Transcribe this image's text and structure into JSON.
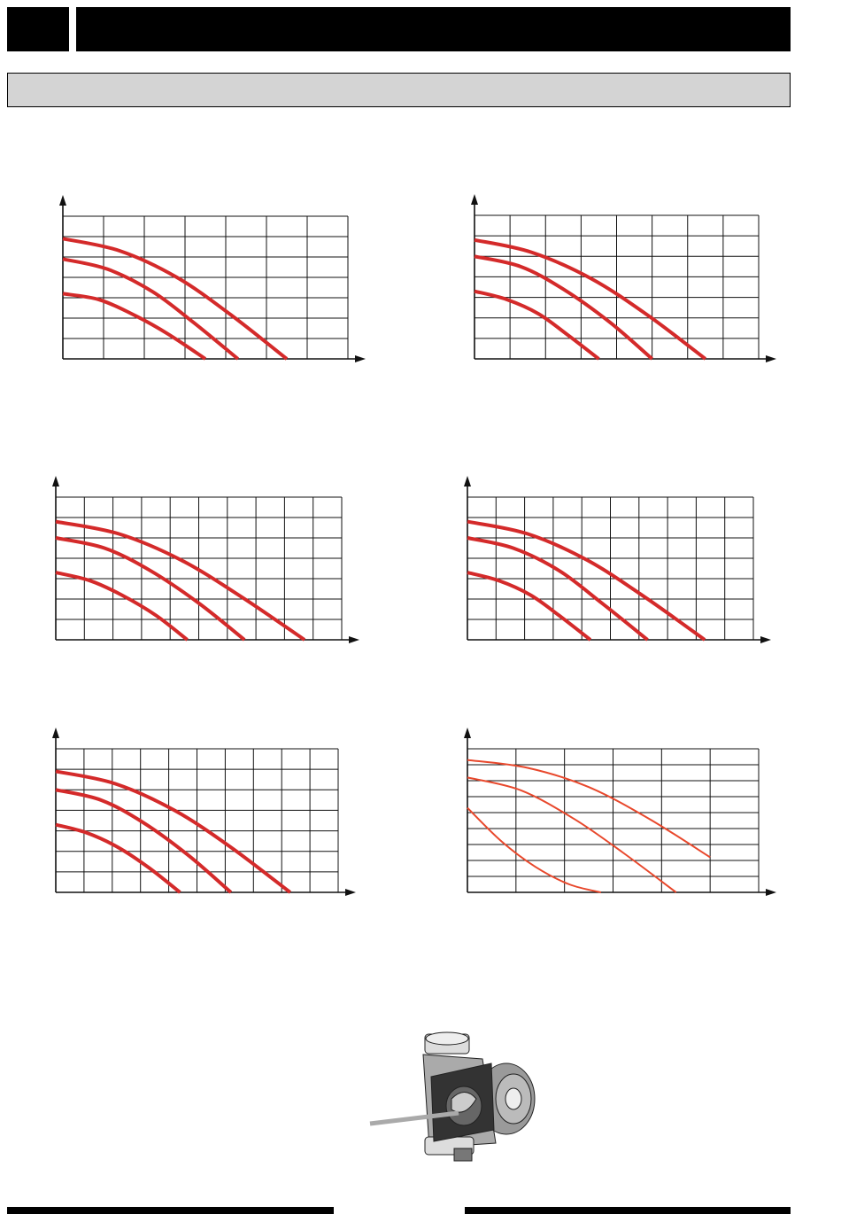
{
  "chart_data": [
    {
      "type": "line",
      "xlim": [
        0,
        7
      ],
      "ylim": [
        0,
        7
      ],
      "grid": true,
      "series": [
        {
          "color": "#d42a2a",
          "x": [
            0,
            1.4,
            2.8,
            4.1,
            5.5
          ],
          "values": [
            5.9,
            5.3,
            4.0,
            2.2,
            0
          ]
        },
        {
          "color": "#d42a2a",
          "x": [
            0,
            1.1,
            2.2,
            3.2,
            4.3
          ],
          "values": [
            4.9,
            4.4,
            3.3,
            1.8,
            0
          ]
        },
        {
          "color": "#d42a2a",
          "x": [
            0,
            0.9,
            1.8,
            2.6,
            3.5
          ],
          "values": [
            3.2,
            2.9,
            2.1,
            1.2,
            0
          ]
        }
      ]
    },
    {
      "type": "line",
      "xlim": [
        0,
        8
      ],
      "ylim": [
        0,
        7
      ],
      "grid": true,
      "series": [
        {
          "color": "#d42a2a",
          "x": [
            0,
            1.6,
            3.3,
            4.9,
            6.5
          ],
          "values": [
            5.8,
            5.2,
            3.9,
            2.1,
            0
          ]
        },
        {
          "color": "#d42a2a",
          "x": [
            0,
            1.3,
            2.5,
            3.8,
            5.0
          ],
          "values": [
            5.0,
            4.5,
            3.4,
            1.8,
            0
          ]
        },
        {
          "color": "#d42a2a",
          "x": [
            0,
            0.9,
            1.8,
            2.6,
            3.5
          ],
          "values": [
            3.3,
            2.9,
            2.2,
            1.2,
            0
          ]
        }
      ]
    },
    {
      "type": "line",
      "xlim": [
        0,
        10
      ],
      "ylim": [
        0,
        7
      ],
      "grid": true,
      "series": [
        {
          "color": "#d42a2a",
          "x": [
            0,
            2.2,
            4.4,
            6.5,
            8.7
          ],
          "values": [
            5.8,
            5.2,
            3.9,
            2.1,
            0
          ]
        },
        {
          "color": "#d42a2a",
          "x": [
            0,
            1.7,
            3.3,
            5.0,
            6.6
          ],
          "values": [
            5.0,
            4.5,
            3.4,
            1.8,
            0
          ]
        },
        {
          "color": "#d42a2a",
          "x": [
            0,
            1.2,
            2.3,
            3.5,
            4.6
          ],
          "values": [
            3.3,
            2.9,
            2.2,
            1.2,
            0
          ]
        }
      ]
    },
    {
      "type": "line",
      "xlim": [
        0,
        10
      ],
      "ylim": [
        0,
        7
      ],
      "grid": true,
      "series": [
        {
          "color": "#d42a2a",
          "x": [
            0,
            2.1,
            4.2,
            6.2,
            8.3
          ],
          "values": [
            5.8,
            5.2,
            3.9,
            2.1,
            0
          ]
        },
        {
          "color": "#d42a2a",
          "x": [
            0,
            1.6,
            3.2,
            4.7,
            6.3
          ],
          "values": [
            5.0,
            4.5,
            3.4,
            1.8,
            0
          ]
        },
        {
          "color": "#d42a2a",
          "x": [
            0,
            1.1,
            2.2,
            3.2,
            4.3
          ],
          "values": [
            3.3,
            2.9,
            2.2,
            1.2,
            0
          ]
        }
      ]
    },
    {
      "type": "line",
      "xlim": [
        0,
        10
      ],
      "ylim": [
        0,
        7
      ],
      "grid": true,
      "series": [
        {
          "color": "#d42a2a",
          "x": [
            0,
            2.1,
            4.2,
            6.2,
            8.3
          ],
          "values": [
            5.9,
            5.3,
            4.0,
            2.2,
            0
          ]
        },
        {
          "color": "#d42a2a",
          "x": [
            0,
            1.6,
            3.1,
            4.7,
            6.2
          ],
          "values": [
            5.0,
            4.5,
            3.4,
            1.8,
            0
          ]
        },
        {
          "color": "#d42a2a",
          "x": [
            0,
            1.1,
            2.2,
            3.3,
            4.4
          ],
          "values": [
            3.3,
            2.9,
            2.2,
            1.2,
            0
          ]
        }
      ]
    },
    {
      "type": "line",
      "xlim": [
        0,
        6
      ],
      "ylim": [
        0,
        9
      ],
      "grid": true,
      "series": [
        {
          "color": "#e8482c",
          "x": [
            0,
            1.25,
            2.5,
            3.75,
            5.0
          ],
          "values": [
            8.3,
            7.8,
            6.6,
            4.6,
            2.2
          ]
        },
        {
          "color": "#e8482c",
          "x": [
            0,
            1.1,
            2.2,
            3.2,
            4.3
          ],
          "values": [
            7.2,
            6.4,
            4.6,
            2.5,
            0
          ]
        },
        {
          "color": "#e8482c",
          "x": [
            0,
            0.7,
            1.4,
            2.1,
            2.75
          ],
          "values": [
            5.3,
            3.2,
            1.6,
            0.5,
            0
          ]
        }
      ]
    }
  ]
}
